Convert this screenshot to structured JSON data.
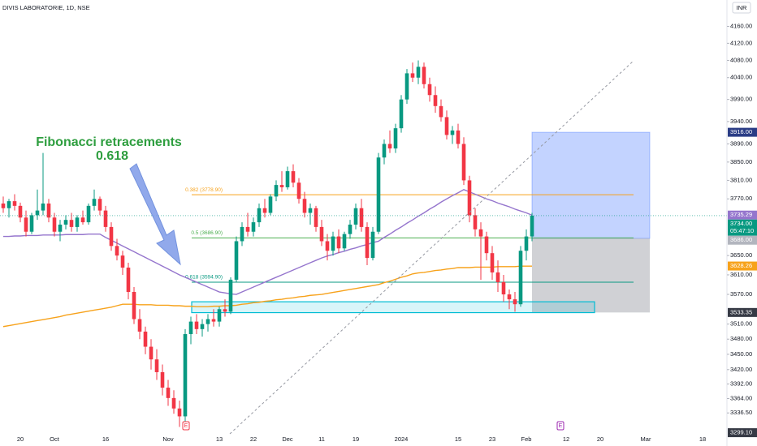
{
  "chart_data": {
    "type": "candlestick",
    "title": "DIVIS LABORATORIE, 1D, NSE",
    "currency": "INR",
    "log_scale": true,
    "ylim": [
      3300,
      4223
    ],
    "yticks": [
      {
        "value": 4160,
        "label": "4160.00"
      },
      {
        "value": 4120,
        "label": "4120.00"
      },
      {
        "value": 4080,
        "label": "4080.00"
      },
      {
        "value": 4040,
        "label": "4040.00"
      },
      {
        "value": 3990,
        "label": "3990.00"
      },
      {
        "value": 3940,
        "label": "3940.00"
      },
      {
        "value": 3890,
        "label": "3890.00"
      },
      {
        "value": 3850,
        "label": "3850.00"
      },
      {
        "value": 3810,
        "label": "3810.00"
      },
      {
        "value": 3770,
        "label": "3770.00"
      },
      {
        "value": 3650,
        "label": "3650.00"
      },
      {
        "value": 3610,
        "label": "3610.00"
      },
      {
        "value": 3570,
        "label": "3570.00"
      },
      {
        "value": 3510,
        "label": "3510.00"
      },
      {
        "value": 3480,
        "label": "3480.00"
      },
      {
        "value": 3450,
        "label": "3450.00"
      },
      {
        "value": 3420,
        "label": "3420.00"
      },
      {
        "value": 3392,
        "label": "3392.00"
      },
      {
        "value": 3364,
        "label": "3364.00"
      },
      {
        "value": 3336.5,
        "label": "3336.50"
      }
    ],
    "categories": [
      null,
      null,
      null,
      "20",
      null,
      null,
      null,
      null,
      null,
      "Oct",
      null,
      null,
      null,
      null,
      null,
      null,
      null,
      null,
      "16",
      null,
      null,
      null,
      null,
      null,
      null,
      null,
      null,
      null,
      null,
      "Nov",
      null,
      null,
      null,
      null,
      null,
      null,
      null,
      null,
      "13",
      null,
      null,
      null,
      null,
      null,
      "22",
      null,
      null,
      null,
      null,
      null,
      "Dec",
      null,
      null,
      null,
      null,
      null,
      "11",
      null,
      null,
      null,
      null,
      null,
      "19",
      null,
      null,
      null,
      null,
      null,
      null,
      null,
      "2024",
      null,
      null,
      null,
      null,
      null,
      null,
      null,
      null,
      null,
      "15",
      null,
      null,
      null,
      null,
      null,
      "23",
      null,
      null,
      null,
      null,
      null,
      "Feb",
      null,
      null,
      null,
      null,
      null,
      null,
      "12",
      null,
      null,
      null,
      null,
      null,
      "20",
      null,
      null,
      null,
      null,
      null,
      null,
      null,
      "Mar",
      null,
      null,
      null,
      null,
      null,
      null,
      null,
      null,
      null,
      "18"
    ],
    "candles": {
      "up_color": "#089981",
      "down_color": "#f23645",
      "values": [
        [
          3760,
          3775,
          3740,
          3750
        ],
        [
          3750,
          3770,
          3730,
          3765
        ],
        [
          3765,
          3780,
          3745,
          3755
        ],
        [
          3755,
          3762,
          3720,
          3730
        ],
        [
          3730,
          3745,
          3690,
          3700
        ],
        [
          3700,
          3740,
          3695,
          3735
        ],
        [
          3735,
          3790,
          3725,
          3745
        ],
        [
          3745,
          3870,
          3735,
          3760
        ],
        [
          3760,
          3770,
          3720,
          3730
        ],
        [
          3730,
          3740,
          3690,
          3700
        ],
        [
          3700,
          3725,
          3680,
          3715
        ],
        [
          3715,
          3735,
          3705,
          3725
        ],
        [
          3725,
          3740,
          3700,
          3710
        ],
        [
          3710,
          3735,
          3700,
          3730
        ],
        [
          3730,
          3745,
          3715,
          3720
        ],
        [
          3720,
          3760,
          3715,
          3755
        ],
        [
          3755,
          3790,
          3745,
          3770
        ],
        [
          3770,
          3775,
          3735,
          3745
        ],
        [
          3745,
          3755,
          3700,
          3710
        ],
        [
          3710,
          3720,
          3660,
          3670
        ],
        [
          3670,
          3685,
          3640,
          3650
        ],
        [
          3650,
          3660,
          3610,
          3625
        ],
        [
          3625,
          3635,
          3560,
          3575
        ],
        [
          3575,
          3585,
          3510,
          3520
        ],
        [
          3520,
          3540,
          3480,
          3495
        ],
        [
          3495,
          3505,
          3450,
          3465
        ],
        [
          3465,
          3480,
          3420,
          3440
        ],
        [
          3440,
          3460,
          3400,
          3415
        ],
        [
          3415,
          3430,
          3370,
          3385
        ],
        [
          3385,
          3400,
          3350,
          3365
        ],
        [
          3365,
          3380,
          3335,
          3345
        ],
        [
          3345,
          3360,
          3310,
          3330
        ],
        [
          3330,
          3500,
          3320,
          3490
        ],
        [
          3490,
          3525,
          3470,
          3515
        ],
        [
          3515,
          3530,
          3490,
          3500
        ],
        [
          3500,
          3520,
          3485,
          3510
        ],
        [
          3510,
          3530,
          3495,
          3520
        ],
        [
          3520,
          3540,
          3505,
          3515
        ],
        [
          3515,
          3545,
          3505,
          3540
        ],
        [
          3540,
          3560,
          3525,
          3535
        ],
        [
          3535,
          3605,
          3530,
          3600
        ],
        [
          3600,
          3690,
          3595,
          3680
        ],
        [
          3680,
          3720,
          3670,
          3710
        ],
        [
          3710,
          3740,
          3690,
          3700
        ],
        [
          3700,
          3730,
          3690,
          3720
        ],
        [
          3720,
          3760,
          3710,
          3750
        ],
        [
          3750,
          3770,
          3730,
          3740
        ],
        [
          3740,
          3780,
          3735,
          3775
        ],
        [
          3775,
          3810,
          3765,
          3800
        ],
        [
          3800,
          3830,
          3785,
          3795
        ],
        [
          3795,
          3840,
          3790,
          3830
        ],
        [
          3830,
          3845,
          3795,
          3805
        ],
        [
          3805,
          3815,
          3760,
          3770
        ],
        [
          3770,
          3785,
          3730,
          3740
        ],
        [
          3740,
          3760,
          3715,
          3750
        ],
        [
          3750,
          3755,
          3700,
          3710
        ],
        [
          3710,
          3725,
          3670,
          3680
        ],
        [
          3680,
          3695,
          3640,
          3660
        ],
        [
          3660,
          3700,
          3650,
          3690
        ],
        [
          3690,
          3705,
          3655,
          3665
        ],
        [
          3665,
          3700,
          3660,
          3695
        ],
        [
          3695,
          3725,
          3685,
          3715
        ],
        [
          3715,
          3760,
          3705,
          3750
        ],
        [
          3750,
          3770,
          3700,
          3710
        ],
        [
          3710,
          3720,
          3630,
          3645
        ],
        [
          3645,
          3710,
          3640,
          3700
        ],
        [
          3700,
          3870,
          3695,
          3860
        ],
        [
          3860,
          3900,
          3845,
          3890
        ],
        [
          3890,
          3920,
          3870,
          3880
        ],
        [
          3880,
          3935,
          3870,
          3925
        ],
        [
          3925,
          4000,
          3915,
          3990
        ],
        [
          3990,
          4060,
          3980,
          4050
        ],
        [
          4050,
          4075,
          4030,
          4040
        ],
        [
          4040,
          4080,
          4025,
          4065
        ],
        [
          4065,
          4075,
          4015,
          4025
        ],
        [
          4025,
          4040,
          3985,
          4000
        ],
        [
          4000,
          4020,
          3960,
          3975
        ],
        [
          3975,
          3990,
          3940,
          3950
        ],
        [
          3950,
          3965,
          3900,
          3910
        ],
        [
          3910,
          3930,
          3890,
          3920
        ],
        [
          3920,
          3935,
          3880,
          3890
        ],
        [
          3890,
          3905,
          3800,
          3810
        ],
        [
          3810,
          3820,
          3720,
          3735
        ],
        [
          3735,
          3750,
          3690,
          3705
        ],
        [
          3705,
          3720,
          3600,
          3690
        ],
        [
          3690,
          3700,
          3640,
          3655
        ],
        [
          3655,
          3670,
          3600,
          3615
        ],
        [
          3615,
          3640,
          3575,
          3595
        ],
        [
          3595,
          3610,
          3555,
          3570
        ],
        [
          3570,
          3580,
          3540,
          3560
        ],
        [
          3560,
          3575,
          3535,
          3550
        ],
        [
          3550,
          3670,
          3545,
          3660
        ],
        [
          3660,
          3705,
          3640,
          3690
        ],
        [
          3690,
          3740,
          3680,
          3734
        ],
        null,
        null,
        null,
        null,
        null,
        null,
        null,
        null,
        null,
        null,
        null,
        null,
        null,
        null,
        null,
        null,
        null,
        null,
        null,
        null,
        null,
        null,
        null,
        null,
        null,
        null,
        null,
        null,
        null,
        null
      ]
    },
    "lines": [
      {
        "color": "#9575cd",
        "values": [
          3690,
          3690,
          3691,
          3691,
          3692,
          3692,
          3692,
          3693,
          3693,
          3693,
          3693,
          3694,
          3694,
          3694,
          3694,
          3695,
          3695,
          3695,
          3688,
          3682,
          3676,
          3670,
          3664,
          3658,
          3652,
          3646,
          3640,
          3634,
          3628,
          3622,
          3616,
          3610,
          3605,
          3600,
          3595,
          3590,
          3585,
          3580,
          3575,
          3573,
          3571,
          3570,
          3575,
          3580,
          3585,
          3590,
          3595,
          3600,
          3605,
          3610,
          3615,
          3620,
          3625,
          3630,
          3635,
          3640,
          3645,
          3649,
          3652,
          3656,
          3659,
          3663,
          3666,
          3670,
          3673,
          3677,
          3680,
          3688,
          3695,
          3703,
          3710,
          3718,
          3725,
          3733,
          3740,
          3748,
          3755,
          3763,
          3770,
          3777,
          3783,
          3790,
          3785,
          3780,
          3775,
          3770,
          3766,
          3761,
          3757,
          3753,
          3748,
          3744,
          3740,
          3735,
          null,
          null,
          null,
          null,
          null,
          null,
          null,
          null,
          null,
          null,
          null,
          null,
          null,
          null,
          null,
          null,
          null,
          null,
          null,
          null,
          null,
          null,
          null,
          null,
          null,
          null,
          null,
          null,
          null,
          null
        ]
      },
      {
        "color": "#f7a21b",
        "values": [
          3505,
          3507,
          3509,
          3511,
          3513,
          3515,
          3517,
          3519,
          3521,
          3523,
          3525,
          3528,
          3530,
          3532,
          3534,
          3536,
          3538,
          3540,
          3542,
          3544,
          3547,
          3550,
          3550,
          3550,
          3549,
          3549,
          3549,
          3548,
          3548,
          3548,
          3547,
          3547,
          3546,
          3546,
          3545,
          3545,
          3545,
          3546,
          3546,
          3547,
          3547,
          3548,
          3550,
          3551,
          3553,
          3554,
          3556,
          3557,
          3559,
          3560,
          3562,
          3563,
          3565,
          3566,
          3568,
          3569,
          3570,
          3572,
          3574,
          3576,
          3578,
          3580,
          3582,
          3584,
          3586,
          3588,
          3590,
          3594,
          3597,
          3601,
          3605,
          3608,
          3612,
          3614,
          3615,
          3617,
          3619,
          3620,
          3622,
          3623,
          3625,
          3625,
          3625,
          3626,
          3626,
          3626,
          3626,
          3627,
          3627,
          3627,
          3627,
          3628,
          3628,
          3628,
          null,
          null,
          null,
          null,
          null,
          null,
          null,
          null,
          null,
          null,
          null,
          null,
          null,
          null,
          null,
          null,
          null,
          null,
          null,
          null,
          null,
          null,
          null,
          null,
          null,
          null,
          null,
          null,
          null,
          null
        ]
      }
    ],
    "fib_levels": [
      {
        "value": 3778.9,
        "label": "0.382 (3778.90)",
        "color": "#f7a21b"
      },
      {
        "value": 3686.9,
        "label": "0.5 (3686.90)",
        "color": "#4caf50"
      },
      {
        "value": 3594.9,
        "label": "0.618 (3594.90)",
        "color": "#089981"
      }
    ],
    "zone": {
      "top": 3555,
      "bottom": 3533,
      "color": "#00bcd4"
    },
    "position": {
      "target": 3916,
      "entry": 3686,
      "stop": 3533.35
    },
    "badges": [
      {
        "value": 3916,
        "label": "3916.00",
        "color": "#2a3c85"
      },
      {
        "value": 3735.29,
        "label": "3735.29",
        "color": "#9575cd"
      },
      {
        "value": 3734,
        "label": "3734.00",
        "sublabel": "05:47:10",
        "color": "#089981"
      },
      {
        "value": 3686,
        "label": "3686.00",
        "color": "#b2b5be"
      },
      {
        "value": 3628.26,
        "label": "3628.26",
        "color": "#f7a21b"
      },
      {
        "value": 3533.35,
        "label": "3533.35",
        "color": "#363a45"
      },
      {
        "value": 3299.1,
        "label": "3299.10",
        "color": "#363a45"
      }
    ],
    "annotation": {
      "title": "Fibonacci retracements",
      "subtitle": "0.618",
      "color": "#2e9e3f"
    },
    "events": [
      {
        "label": "E",
        "color": "#f23645"
      },
      {
        "label": "E",
        "color": "#9c27b0"
      }
    ]
  }
}
